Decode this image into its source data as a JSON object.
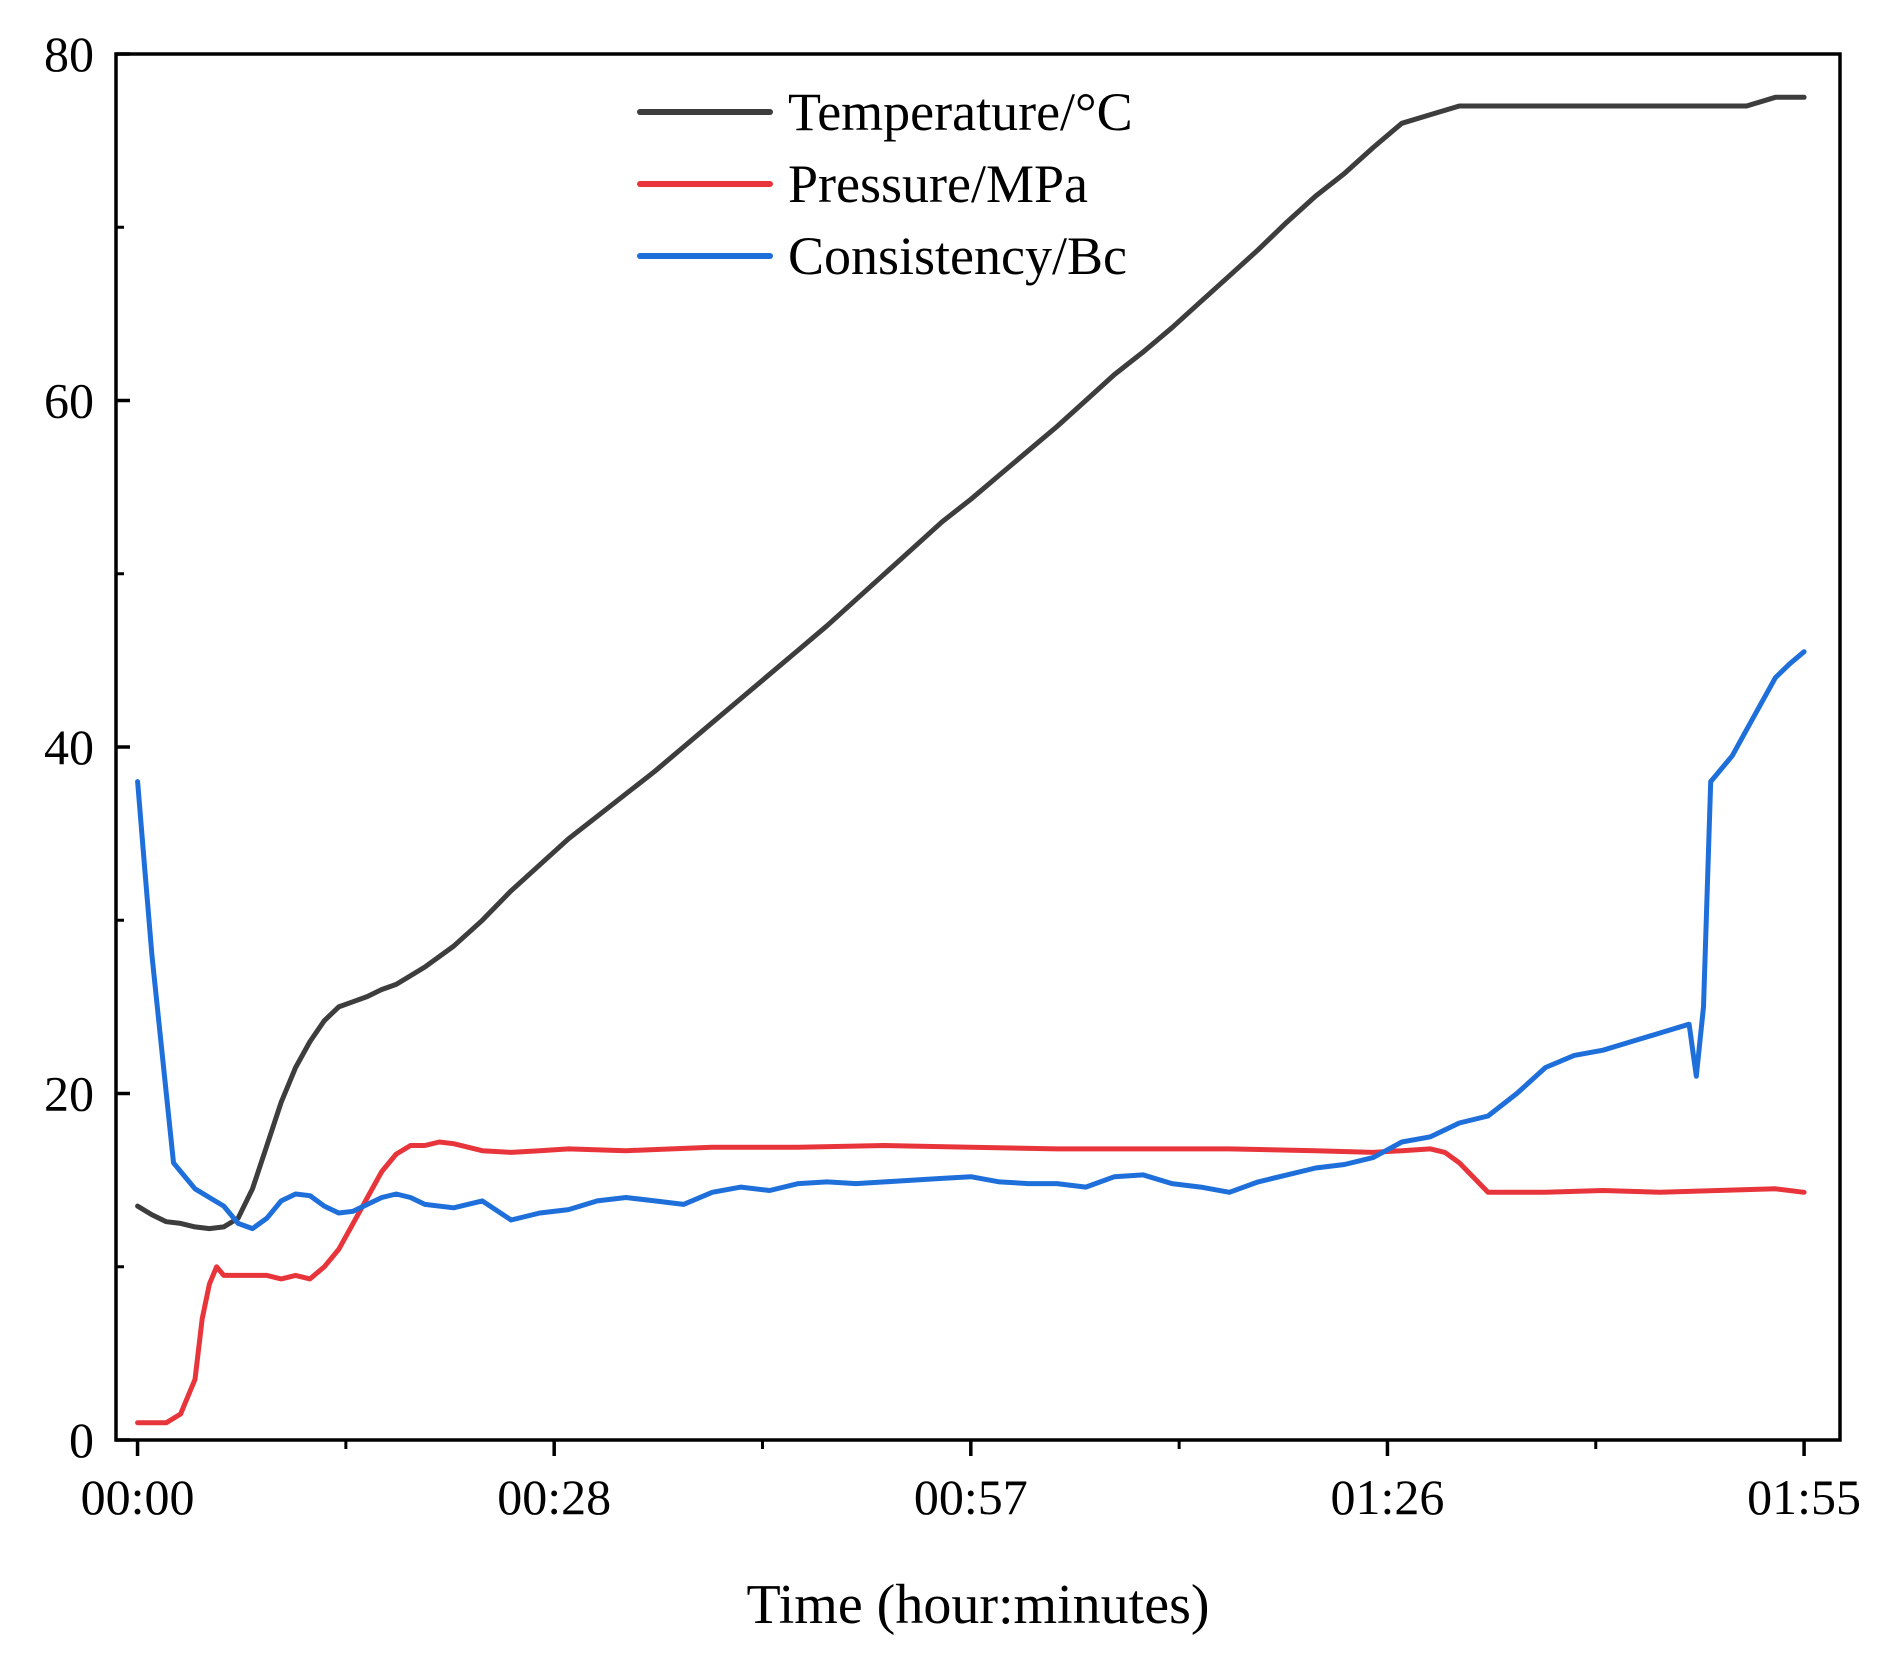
{
  "chart_data": {
    "type": "line",
    "title": "",
    "xlabel": "Time (hour:minutes)",
    "ylabel": "",
    "xlim": [
      -1.5,
      118.5
    ],
    "ylim": [
      0,
      80
    ],
    "x_unit": "minutes",
    "x_ticks": [
      0,
      29,
      58,
      87,
      116
    ],
    "x_minor_ticks": [
      14.5,
      43.5,
      72.5,
      101.5
    ],
    "x_tick_labels": [
      "00:00",
      "00:28",
      "00:57",
      "01:26",
      "01:55"
    ],
    "y_ticks": [
      0,
      20,
      40,
      60,
      80
    ],
    "y_minor_ticks": [
      10,
      30,
      50,
      70
    ],
    "y_tick_labels": [
      "0",
      "20",
      "40",
      "60",
      "80"
    ],
    "grid": false,
    "legend_position": "top-center",
    "series": [
      {
        "name": "Temperature/°C",
        "color": "#3d3d3d",
        "x": [
          0,
          1,
          2,
          3,
          4,
          5,
          6,
          7,
          8,
          9,
          10,
          11,
          12,
          13,
          14,
          15,
          16,
          17,
          18,
          19,
          20,
          22,
          24,
          26,
          28,
          30,
          32,
          34,
          36,
          38,
          40,
          42,
          44,
          46,
          48,
          50,
          52,
          54,
          56,
          58,
          60,
          62,
          64,
          66,
          68,
          70,
          72,
          74,
          76,
          78,
          80,
          82,
          84,
          86,
          88,
          90,
          92,
          94,
          96,
          98,
          100,
          102,
          104,
          106,
          108,
          110,
          112,
          114,
          116
        ],
        "values": [
          13.5,
          13,
          12.6,
          12.5,
          12.3,
          12.2,
          12.3,
          12.8,
          14.5,
          17,
          19.5,
          21.5,
          23,
          24.2,
          25,
          25.3,
          25.6,
          26,
          26.3,
          26.8,
          27.3,
          28.5,
          30,
          31.7,
          33.2,
          34.7,
          36,
          37.3,
          38.6,
          40,
          41.4,
          42.8,
          44.2,
          45.6,
          47,
          48.5,
          50,
          51.5,
          53,
          54.3,
          55.7,
          57.1,
          58.5,
          60,
          61.5,
          62.8,
          64.2,
          65.7,
          67.2,
          68.7,
          70.3,
          71.8,
          73.1,
          74.6,
          76,
          76.5,
          77,
          77,
          77,
          77,
          77,
          77,
          77,
          77,
          77,
          77,
          77,
          77.5,
          77.5
        ]
      },
      {
        "name": "Pressure/MPa",
        "color": "#e8353b",
        "x": [
          0,
          1,
          2,
          3,
          3.5,
          4,
          4.5,
          5,
          5.5,
          6,
          7,
          8,
          9,
          10,
          11,
          12,
          13,
          14,
          15,
          16,
          17,
          18,
          19,
          20,
          21,
          22,
          24,
          26,
          28,
          30,
          34,
          40,
          46,
          52,
          58,
          64,
          70,
          76,
          82,
          86,
          88,
          90,
          91,
          92,
          94,
          98,
          102,
          106,
          110,
          114,
          116
        ],
        "values": [
          1,
          1,
          1,
          1.5,
          2.5,
          3.5,
          7,
          9,
          10,
          9.5,
          9.5,
          9.5,
          9.5,
          9.3,
          9.5,
          9.3,
          10,
          11,
          12.5,
          14,
          15.5,
          16.5,
          17,
          17,
          17.2,
          17.1,
          16.7,
          16.6,
          16.7,
          16.8,
          16.7,
          16.9,
          16.9,
          17,
          16.9,
          16.8,
          16.8,
          16.8,
          16.7,
          16.6,
          16.7,
          16.8,
          16.6,
          16,
          14.3,
          14.3,
          14.4,
          14.3,
          14.4,
          14.5,
          14.3
        ]
      },
      {
        "name": "Consistency/Bc",
        "color": "#1f6fdb",
        "x": [
          0,
          0.5,
          1,
          1.5,
          2,
          2.5,
          3,
          4,
          5,
          6,
          7,
          8,
          9,
          10,
          11,
          12,
          13,
          14,
          15,
          16,
          17,
          18,
          19,
          20,
          22,
          24,
          26,
          28,
          30,
          32,
          34,
          36,
          38,
          40,
          42,
          44,
          46,
          48,
          50,
          52,
          54,
          56,
          58,
          60,
          62,
          64,
          66,
          68,
          70,
          72,
          74,
          76,
          78,
          80,
          82,
          84,
          86,
          88,
          90,
          92,
          94,
          96,
          98,
          100,
          102,
          104,
          106,
          108,
          108.5,
          109,
          109.5,
          110,
          111,
          112,
          113,
          114,
          115,
          116
        ],
        "values": [
          38,
          33,
          28,
          24,
          20,
          16,
          15.5,
          14.5,
          14,
          13.5,
          12.5,
          12.2,
          12.8,
          13.8,
          14.2,
          14.1,
          13.5,
          13.1,
          13.2,
          13.6,
          14,
          14.2,
          14,
          13.6,
          13.4,
          13.8,
          12.7,
          13.1,
          13.3,
          13.8,
          14,
          13.8,
          13.6,
          14.3,
          14.6,
          14.4,
          14.8,
          14.9,
          14.8,
          14.9,
          15,
          15.1,
          15.2,
          14.9,
          14.8,
          14.8,
          14.6,
          15.2,
          15.3,
          14.8,
          14.6,
          14.3,
          14.9,
          15.3,
          15.7,
          15.9,
          16.3,
          17.2,
          17.5,
          18.3,
          18.7,
          20,
          21.5,
          22.2,
          22.5,
          23,
          23.5,
          24,
          21,
          25,
          38,
          38.5,
          39.5,
          41,
          42.5,
          44,
          44.8,
          45.5
        ]
      }
    ]
  }
}
